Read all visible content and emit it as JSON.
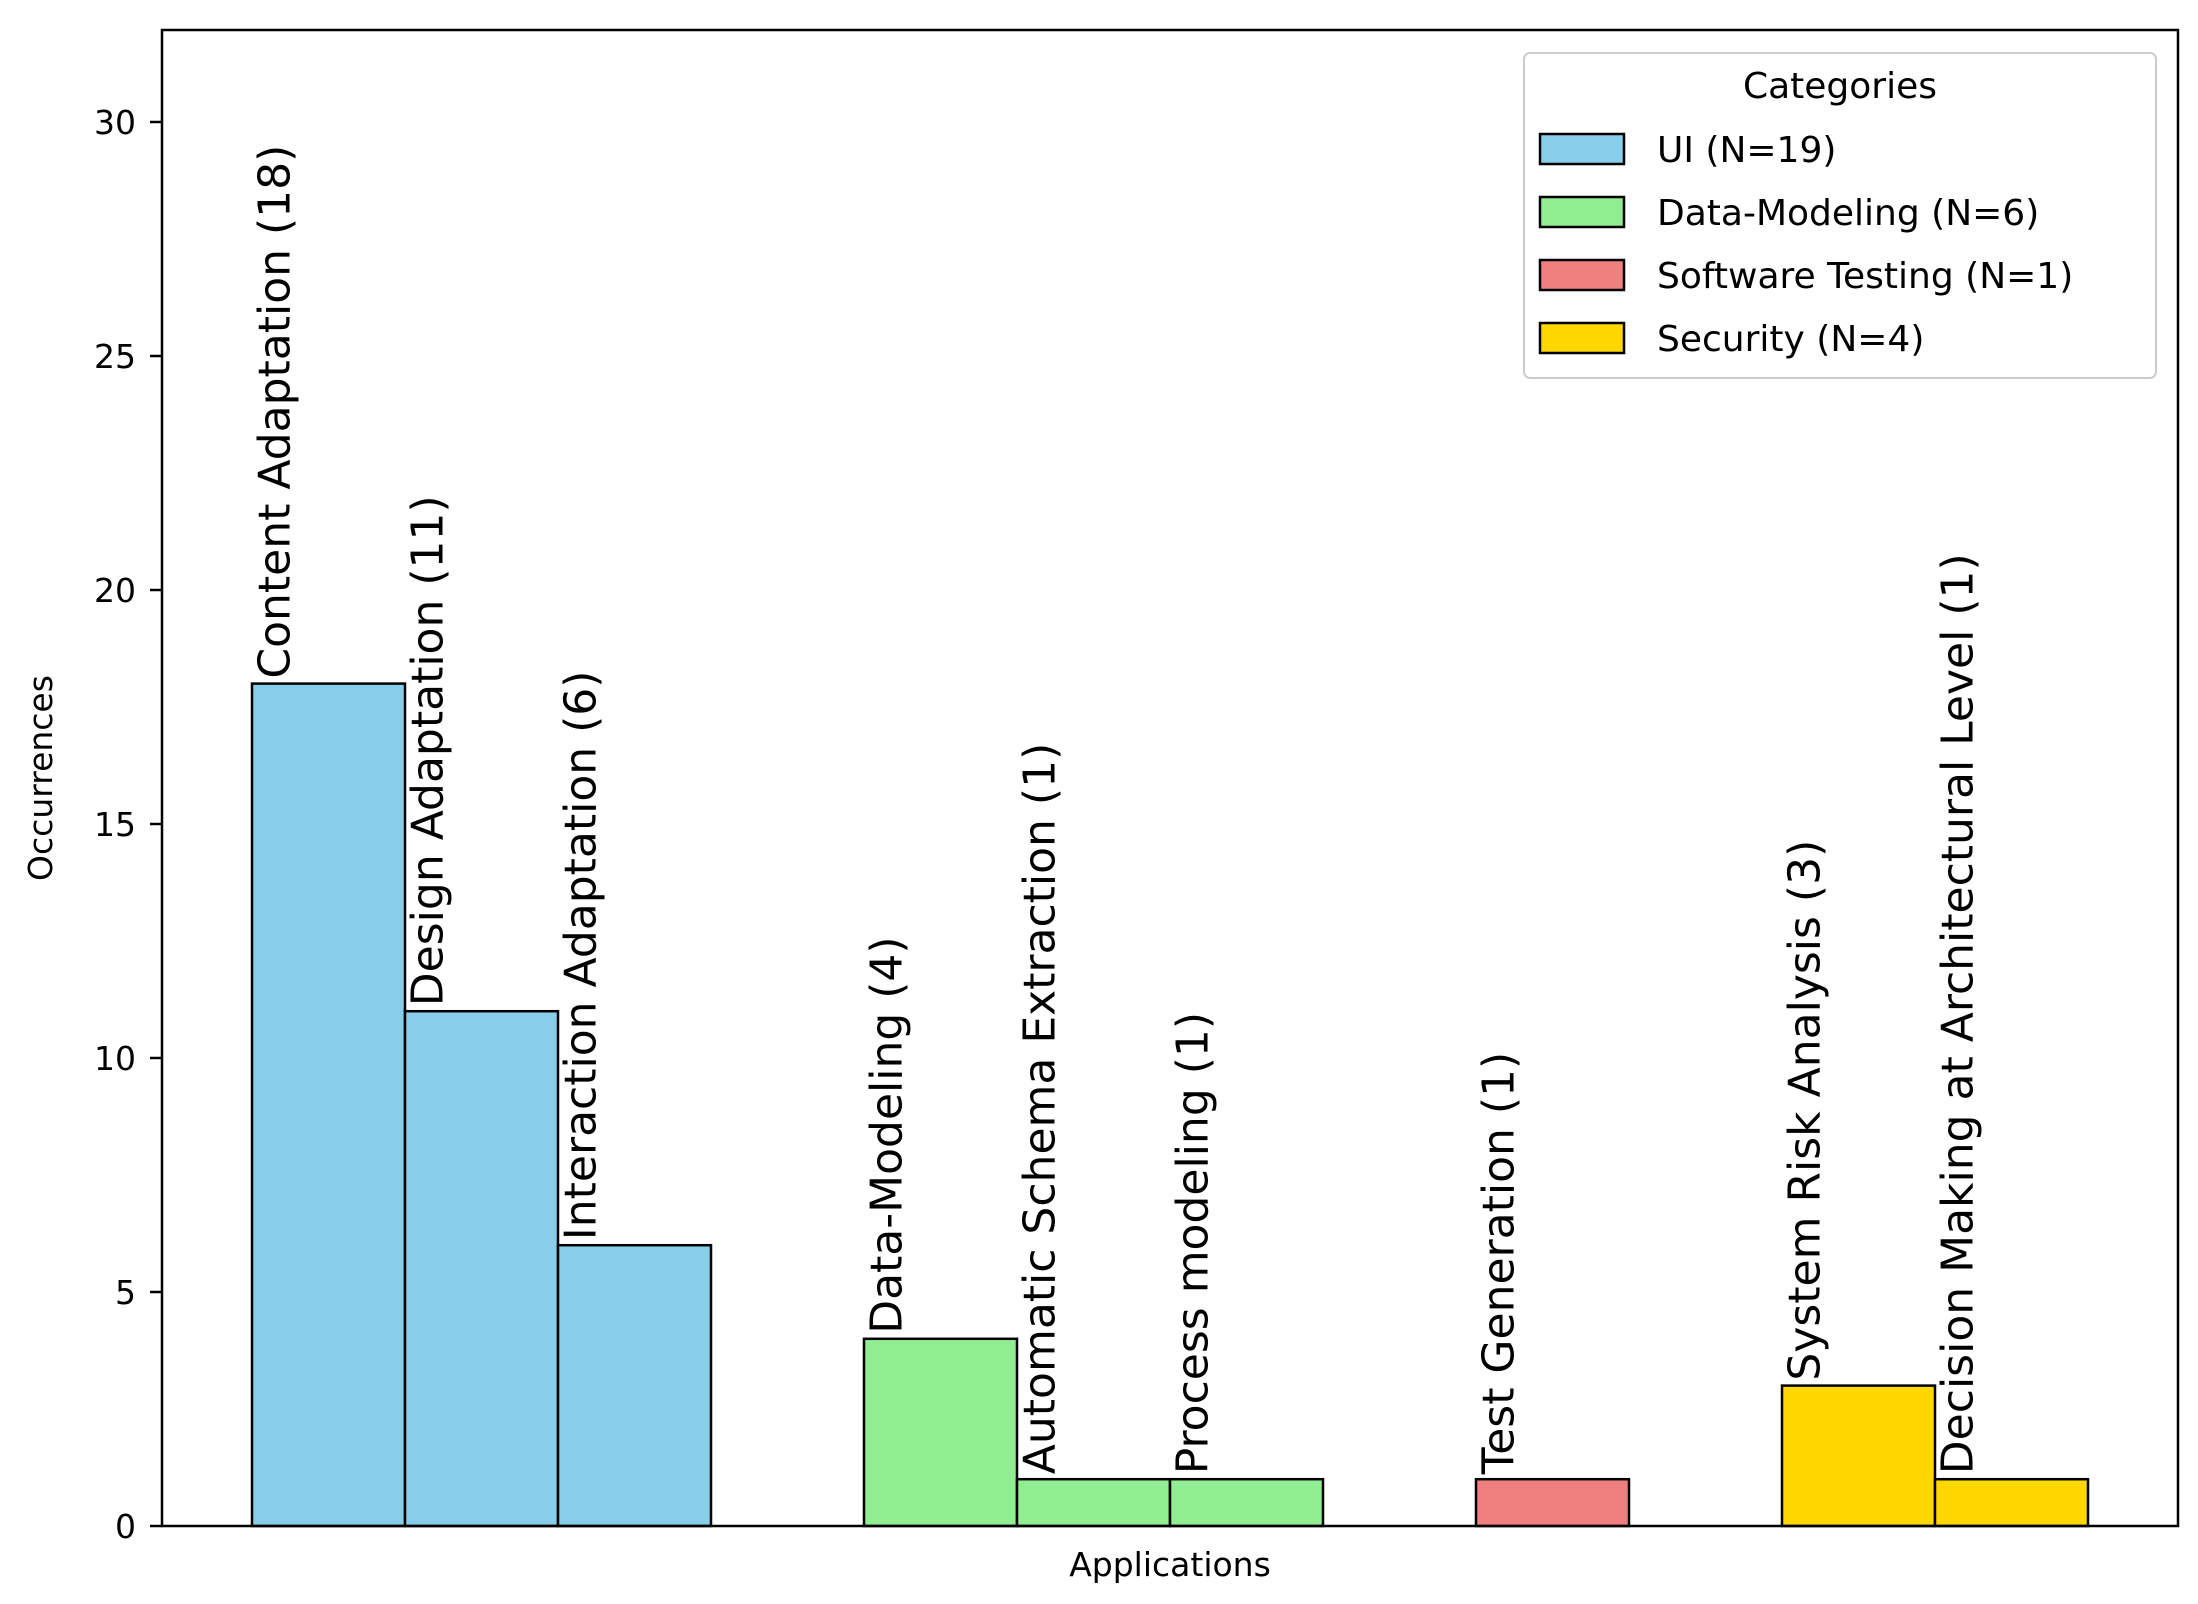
{
  "chart_data": {
    "type": "bar",
    "title": "",
    "xlabel": "Applications",
    "ylabel": "Occurrences",
    "ylim": [
      0,
      32
    ],
    "yticks": [
      0,
      5,
      10,
      15,
      20,
      25,
      30
    ],
    "grid": false,
    "legend": {
      "title": "Categories",
      "placement": "top-right",
      "entries": [
        {
          "label": "UI (N=19)",
          "color": "#87CEEB"
        },
        {
          "label": "Data-Modeling (N=6)",
          "color": "#90EE90"
        },
        {
          "label": "Software Testing (N=1)",
          "color": "#F08080"
        },
        {
          "label": "Security (N=4)",
          "color": "#FFD700"
        }
      ]
    },
    "groups": [
      {
        "category": "UI",
        "color": "#87CEEB",
        "bars": [
          {
            "label": "Content Adaptation (18)",
            "value": 18
          },
          {
            "label": "Design Adaptation (11)",
            "value": 11
          },
          {
            "label": "Interaction Adaptation (6)",
            "value": 6
          }
        ]
      },
      {
        "category": "Data-Modeling",
        "color": "#90EE90",
        "bars": [
          {
            "label": "Data-Modeling (4)",
            "value": 4
          },
          {
            "label": "Automatic Schema Extraction (1)",
            "value": 1
          },
          {
            "label": "Process modeling (1)",
            "value": 1
          }
        ]
      },
      {
        "category": "Software Testing",
        "color": "#F08080",
        "bars": [
          {
            "label": "Test Generation (1)",
            "value": 1
          }
        ]
      },
      {
        "category": "Security",
        "color": "#FFD700",
        "bars": [
          {
            "label": "System Risk Analysis (3)",
            "value": 3
          },
          {
            "label": "Decision Making at Architectural Level (1)",
            "value": 1
          }
        ]
      }
    ]
  }
}
